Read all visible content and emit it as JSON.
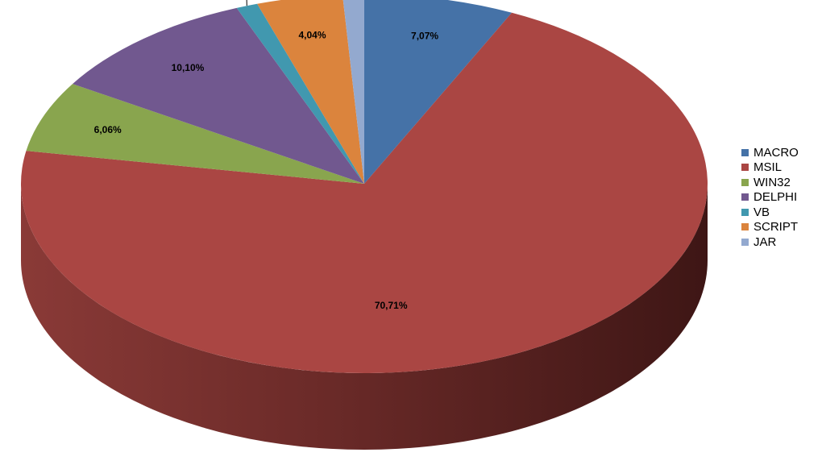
{
  "chart_data": {
    "type": "pie",
    "style": "3d",
    "title": "",
    "legend_position": "right",
    "series": [
      {
        "name": "MACRO",
        "value": 7.07,
        "label": "7,07%",
        "color": "#4572A7"
      },
      {
        "name": "MSIL",
        "value": 70.71,
        "label": "70,71%",
        "color": "#AA4643"
      },
      {
        "name": "WIN32",
        "value": 6.06,
        "label": "6,06%",
        "color": "#89A54E"
      },
      {
        "name": "DELPHI",
        "value": 10.1,
        "label": "10,10%",
        "color": "#71588F"
      },
      {
        "name": "VB",
        "value": 1.01,
        "label": "1,01%",
        "color": "#4198AF"
      },
      {
        "name": "SCRIPT",
        "value": 4.04,
        "label": "4,04%",
        "color": "#DB843D"
      },
      {
        "name": "JAR",
        "value": 1.01,
        "label": "1,01%",
        "color": "#93A9CF"
      }
    ]
  }
}
